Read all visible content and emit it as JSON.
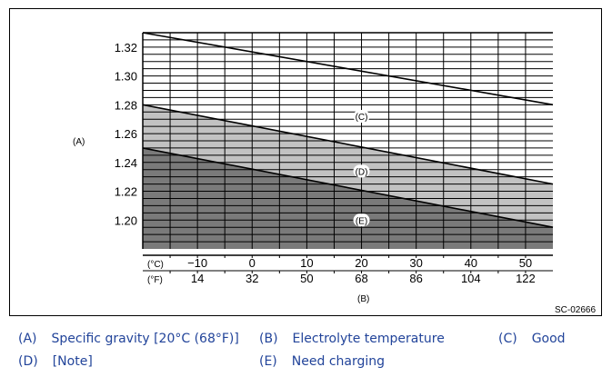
{
  "chart_data": {
    "type": "line",
    "x": {
      "celsius_ticks": [
        -10,
        0,
        10,
        20,
        30,
        40,
        50
      ],
      "fahrenheit_ticks": [
        14,
        32,
        50,
        68,
        86,
        104,
        122
      ],
      "range_celsius": [
        -20,
        55
      ],
      "celsius_unit": "(°C)",
      "fahrenheit_unit": "(°F)",
      "label": "(B)"
    },
    "y": {
      "ticks": [
        "1.32",
        "1.30",
        "1.28",
        "1.26",
        "1.24",
        "1.22",
        "1.20"
      ],
      "range": [
        1.18,
        1.33
      ],
      "label": "(A)"
    },
    "grid": true,
    "series": [
      {
        "x": [
          -20,
          55
        ],
        "values": [
          1.33,
          1.28
        ]
      },
      {
        "x": [
          -20,
          55
        ],
        "values": [
          1.28,
          1.225
        ]
      },
      {
        "x": [
          -20,
          55
        ],
        "values": [
          1.25,
          1.195
        ]
      }
    ],
    "regions": [
      {
        "label": "(C)",
        "position": "above upper line",
        "fill": "#ffffff",
        "at": [
          20,
          1.272
        ]
      },
      {
        "label": "(D)",
        "position": "between lines",
        "fill": "#c2c2c2",
        "at": [
          20,
          1.234
        ]
      },
      {
        "label": "(E)",
        "position": "below lower line",
        "fill": "#7a7a7a",
        "at": [
          20,
          1.2
        ]
      }
    ],
    "figure_code": "SC-02666"
  },
  "legend": [
    {
      "key": "(A)",
      "text": "Specific gravity [20°C (68°F)]"
    },
    {
      "key": "(B)",
      "text": "Electrolyte temperature"
    },
    {
      "key": "(C)",
      "text": "Good"
    },
    {
      "key": "(D)",
      "text": "[Note]"
    },
    {
      "key": "(E)",
      "text": "Need charging"
    }
  ],
  "colors": {
    "legend_text": "#22449a",
    "light_zone": "#c2c2c2",
    "dark_zone": "#7a7a7a"
  }
}
